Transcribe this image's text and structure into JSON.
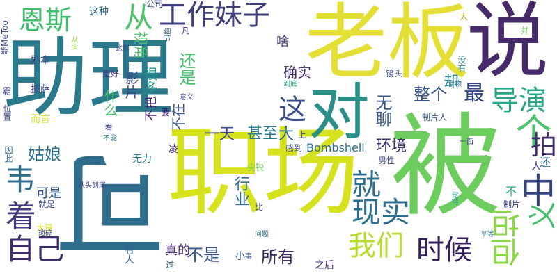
{
  "cloud": {
    "words": [
      {
        "text": "助理",
        "color": "#2b7a8c"
      },
      {
        "text": "被",
        "color": "#6ccc5d"
      },
      {
        "text": "老板",
        "color": "#e4df35"
      },
      {
        "text": "说",
        "color": "#462a6a"
      },
      {
        "text": "职场",
        "color": "#d7e21f"
      },
      {
        "text": "可",
        "color": "#2f6d8d"
      },
      {
        "text": "对",
        "color": "#2a8f86"
      },
      {
        "text": "工作妹子",
        "color": "#403f7e"
      },
      {
        "text": "恩斯",
        "color": "#3bbd69"
      },
      {
        "text": "从",
        "color": "#4fc36b"
      },
      {
        "text": "这",
        "color": "#3e4e88"
      },
      {
        "text": "最",
        "color": "#33447e"
      },
      {
        "text": "导演",
        "color": "#26a687"
      },
      {
        "text": "个",
        "color": "#4cc26c"
      },
      {
        "text": "就",
        "color": "#2e6e8e"
      },
      {
        "text": "韦",
        "color": "#2d6f8d"
      },
      {
        "text": "着",
        "color": "#463b7e"
      },
      {
        "text": "现实",
        "color": "#2d708d"
      },
      {
        "text": "我们",
        "color": "#b5dd2b"
      },
      {
        "text": "时候",
        "color": "#35205a"
      },
      {
        "text": "自己",
        "color": "#3e2e6e"
      },
      {
        "text": "中",
        "color": "#33427e"
      },
      {
        "text": "拍",
        "color": "#3f2d6c"
      },
      {
        "text": "义",
        "color": "#40be6a"
      },
      {
        "text": "但坦",
        "color": "#8bd646"
      },
      {
        "text": "无聊",
        "color": "#375a8c"
      },
      {
        "text": "确实",
        "color": "#3d2c68"
      },
      {
        "text": "整个",
        "color": "#38588c"
      },
      {
        "text": "却",
        "color": "#24888d"
      },
      {
        "text": "一天",
        "color": "#3e4a89"
      },
      {
        "text": "甚至",
        "color": "#2a7a8e"
      },
      {
        "text": "大",
        "color": "#2e6e8e"
      },
      {
        "text": "Bombshell",
        "color": "#2d6f8e"
      },
      {
        "text": "环境",
        "color": "#3c2e69"
      },
      {
        "text": "姑娘",
        "color": "#2d708e"
      },
      {
        "text": "行业",
        "color": "#2f6b8e"
      },
      {
        "text": "所有",
        "color": "#3b2b67"
      },
      {
        "text": "不是",
        "color": "#3a548c"
      },
      {
        "text": "真的",
        "color": "#4b2b72"
      },
      {
        "text": "可是",
        "color": "#32568c"
      },
      {
        "text": "影片",
        "color": "#3d4d8a"
      },
      {
        "text": "很多",
        "color": "#21918c"
      },
      {
        "text": "还是",
        "color": "#46c06f"
      },
      {
        "text": "视角",
        "color": "#49c16d"
      },
      {
        "text": "什么",
        "color": "#4cc26c"
      },
      {
        "text": "不在",
        "color": "#3b528b"
      },
      {
        "text": "不把",
        "color": "#482677"
      },
      {
        "text": "剧本",
        "color": "#3e4b89"
      },
      {
        "text": "披萨",
        "color": "#3d4c8a"
      },
      {
        "text": "而言",
        "color": "#d0e11c"
      },
      {
        "text": "更好",
        "color": "#453781"
      },
      {
        "text": "这种",
        "color": "#30688e"
      },
      {
        "text": "公司",
        "color": "#3d4e8a"
      },
      {
        "text": "啥",
        "color": "#433d84"
      },
      {
        "text": "细节",
        "color": "#3f6a8a"
      },
      {
        "text": "凡",
        "color": "#45337d"
      },
      {
        "text": "太",
        "color": "#b0b030"
      },
      {
        "text": "并",
        "color": "#6ccd5a"
      },
      {
        "text": "没有",
        "color": "#3c8b90"
      },
      {
        "text": "镜头",
        "color": "#3f4b8a"
      },
      {
        "text": "到底",
        "color": "#20a486"
      },
      {
        "text": "食物",
        "color": "#2c728e"
      },
      {
        "text": "制片人",
        "color": "#38598c"
      },
      {
        "text": "一面",
        "color": "#433e85"
      },
      {
        "text": "还",
        "color": "#30688e"
      },
      {
        "text": "人",
        "color": "#443983"
      },
      {
        "text": "不",
        "color": "#28ae80"
      },
      {
        "text": "制片",
        "color": "#404588"
      },
      {
        "text": "觉得",
        "color": "#1fa088"
      },
      {
        "text": "平等",
        "color": "#2e6e8e"
      },
      {
        "text": "上",
        "color": "#3f4788"
      },
      {
        "text": "感到",
        "color": "#3b518b"
      },
      {
        "text": "男性",
        "color": "#404688"
      },
      {
        "text": "凌",
        "color": "#46307e"
      },
      {
        "text": "无力",
        "color": "#26828e"
      },
      {
        "text": "尖锐",
        "color": "#6ece58"
      },
      {
        "text": "要",
        "color": "#3b0f70"
      },
      {
        "text": "意义",
        "color": "#3f4a89"
      },
      {
        "text": "看",
        "color": "#414287"
      },
      {
        "text": "不能",
        "color": "#2a788e"
      },
      {
        "text": "比",
        "color": "#3e4989"
      },
      {
        "text": "问题",
        "color": "#2f6c8e"
      },
      {
        "text": "小",
        "color": "#32658e"
      },
      {
        "text": "事",
        "color": "#3a548c"
      },
      {
        "text": "之后",
        "color": "#472e7c"
      },
      {
        "text": "过",
        "color": "#30688e"
      },
      {
        "text": "有人",
        "color": "#33638d"
      },
      {
        "text": "大量",
        "color": "#d8e219"
      },
      {
        "text": "琐碎",
        "color": "#3d4c8a"
      },
      {
        "text": "就是",
        "color": "#3e4989"
      },
      {
        "text": "从头到尾",
        "color": "#3e4a89"
      },
      {
        "text": "因此",
        "color": "#31668e"
      },
      {
        "text": "位置",
        "color": "#3d4e8a"
      },
      {
        "text": "霸",
        "color": "#414487"
      },
      {
        "text": "能MeToo",
        "color": "#3e4989"
      },
      {
        "text": "从头",
        "color": "#9fd938"
      },
      {
        "text": "这样",
        "color": "#3f4889"
      }
    ]
  }
}
